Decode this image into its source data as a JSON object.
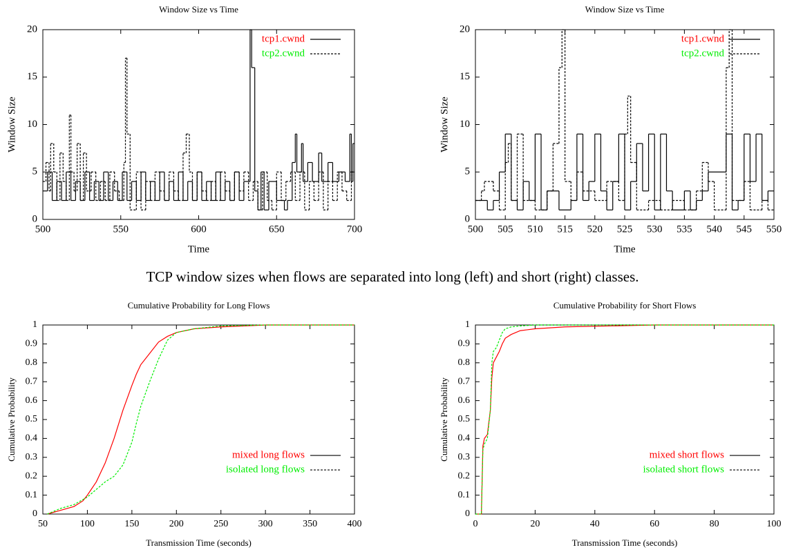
{
  "caption": "TCP window sizes when flows are separated into long (left) and short (right) classes.",
  "chart_data": [
    {
      "type": "line",
      "step": true,
      "title": "Window Size vs Time",
      "xlabel": "Time",
      "ylabel": "Window Size",
      "xlim": [
        500,
        700
      ],
      "xticks": [
        500,
        550,
        600,
        650,
        700
      ],
      "ylim": [
        0,
        20
      ],
      "yticks": [
        0,
        5,
        10,
        15,
        20
      ],
      "legend": "top-right",
      "series": [
        {
          "name": "tcp1.cwnd",
          "color": "#ff0000",
          "dashed": false,
          "x": [
            500,
            503,
            506,
            509,
            512,
            515,
            518,
            521,
            524,
            527,
            530,
            533,
            536,
            539,
            542,
            545,
            548,
            551,
            554,
            557,
            560,
            563,
            566,
            569,
            572,
            575,
            578,
            581,
            584,
            587,
            590,
            593,
            596,
            599,
            602,
            605,
            608,
            611,
            614,
            617,
            620,
            623,
            626,
            629,
            633,
            634,
            636,
            638,
            640,
            642,
            645,
            650,
            655,
            657,
            660,
            662,
            663,
            666,
            667,
            670,
            673,
            677,
            679,
            683,
            686,
            690,
            694,
            697,
            698,
            699,
            700
          ],
          "values": [
            3,
            5,
            2,
            4,
            2,
            5,
            2,
            4,
            2,
            5,
            2,
            4,
            2,
            5,
            2,
            4,
            2,
            5,
            2,
            4,
            2,
            5,
            2,
            4,
            2,
            5,
            2,
            4,
            2,
            5,
            2,
            4,
            2,
            5,
            2,
            4,
            2,
            5,
            2,
            4,
            2,
            5,
            2,
            4,
            20,
            16,
            3,
            1,
            5,
            1,
            4,
            2,
            1,
            2,
            6,
            9,
            5,
            8,
            4,
            6,
            4,
            7,
            4,
            6,
            4,
            5,
            4,
            9,
            4,
            8,
            8
          ]
        },
        {
          "name": "tcp2.cwnd",
          "color": "#00ee00",
          "dashed": true,
          "x": [
            500,
            502,
            504,
            505,
            507,
            509,
            511,
            513,
            515,
            517,
            518,
            520,
            522,
            524,
            526,
            528,
            531,
            534,
            537,
            540,
            543,
            546,
            549,
            552,
            553,
            554,
            556,
            560,
            563,
            566,
            569,
            572,
            575,
            578,
            581,
            584,
            587,
            590,
            592,
            594,
            596,
            599,
            602,
            605,
            608,
            611,
            614,
            617,
            620,
            623,
            626,
            629,
            632,
            635,
            638,
            641,
            644,
            647,
            650,
            653,
            656,
            659,
            662,
            665,
            668,
            671,
            674,
            677,
            680,
            683,
            686,
            689,
            692,
            695,
            698,
            700
          ],
          "values": [
            4,
            6,
            3,
            8,
            5,
            2,
            7,
            4,
            2,
            11,
            5,
            3,
            8,
            2,
            7,
            3,
            5,
            2,
            4,
            2,
            5,
            3,
            2,
            6,
            17,
            9,
            1,
            5,
            1,
            4,
            2,
            5,
            3,
            2,
            5,
            3,
            2,
            7,
            9,
            5,
            2,
            5,
            3,
            2,
            4,
            2,
            5,
            3,
            2,
            5,
            3,
            5,
            2,
            4,
            1,
            5,
            2,
            1,
            5,
            2,
            4,
            5,
            2,
            5,
            1,
            4,
            2,
            5,
            1,
            4,
            2,
            5,
            3,
            2,
            5,
            5
          ]
        }
      ]
    },
    {
      "type": "line",
      "step": true,
      "title": "Window Size vs Time",
      "xlabel": "Time",
      "ylabel": "Window Size",
      "xlim": [
        500,
        550
      ],
      "xticks": [
        500,
        505,
        510,
        515,
        520,
        525,
        530,
        535,
        540,
        545,
        550
      ],
      "ylim": [
        0,
        20
      ],
      "yticks": [
        0,
        5,
        10,
        15,
        20
      ],
      "legend": "top-right",
      "series": [
        {
          "name": "tcp1.cwnd",
          "color": "#ff0000",
          "dashed": false,
          "x": [
            500,
            502,
            503,
            504,
            505,
            506,
            507,
            508,
            509,
            510,
            511,
            512,
            514,
            516,
            517,
            518,
            519,
            520,
            521,
            522,
            523,
            524,
            525,
            526,
            527,
            528,
            529,
            530,
            531,
            532,
            533,
            535,
            536,
            537,
            538,
            539,
            542,
            543,
            544,
            545,
            546,
            547,
            548,
            549,
            550
          ],
          "values": [
            2,
            1,
            2,
            5,
            9,
            2,
            1,
            4,
            2,
            9,
            1,
            3,
            1,
            2,
            9,
            2,
            4,
            9,
            3,
            1,
            4,
            9,
            1,
            4,
            8,
            3,
            9,
            1,
            9,
            3,
            1,
            3,
            1,
            2,
            3,
            5,
            9,
            1,
            2,
            9,
            4,
            9,
            2,
            3,
            3
          ]
        },
        {
          "name": "tcp2.cwnd",
          "color": "#00ee00",
          "dashed": true,
          "x": [
            500,
            501,
            501.5,
            503,
            504,
            505,
            505.5,
            506,
            507,
            508,
            510,
            512,
            513,
            514,
            514.5,
            515,
            516,
            517,
            518,
            520,
            522,
            524,
            525,
            525.5,
            526,
            527,
            529,
            531,
            533,
            535,
            537,
            538,
            539,
            540,
            542,
            542.5,
            543,
            545,
            546,
            548,
            549,
            550
          ],
          "values": [
            2,
            3,
            4,
            3,
            1,
            6,
            8,
            2,
            9,
            2,
            1,
            3,
            8,
            16,
            20,
            4,
            2,
            5,
            3,
            2,
            4,
            2,
            9,
            13,
            6,
            1,
            2,
            1,
            2,
            1,
            3,
            6,
            4,
            1,
            16,
            20,
            2,
            4,
            1,
            2,
            1,
            1
          ]
        }
      ]
    },
    {
      "type": "line",
      "title": "Cumulative Probability for Long Flows",
      "xlabel": "Transmission Time (seconds)",
      "ylabel": "Cumulative Probability",
      "xlim": [
        50,
        400
      ],
      "xticks": [
        50,
        100,
        150,
        200,
        250,
        300,
        350,
        400
      ],
      "ylim": [
        0,
        1
      ],
      "yticks": [
        0,
        0.1,
        0.2,
        0.3,
        0.4,
        0.5,
        0.6,
        0.7,
        0.8,
        0.9,
        1
      ],
      "legend": "right",
      "series": [
        {
          "name": "mixed long flows",
          "color": "#ff0000",
          "dashed": false,
          "x": [
            55,
            70,
            85,
            95,
            100,
            110,
            120,
            130,
            140,
            150,
            155,
            160,
            170,
            180,
            190,
            200,
            220,
            250,
            300,
            400
          ],
          "values": [
            0,
            0.02,
            0.04,
            0.07,
            0.1,
            0.17,
            0.27,
            0.4,
            0.55,
            0.68,
            0.74,
            0.79,
            0.85,
            0.91,
            0.94,
            0.96,
            0.98,
            0.99,
            1,
            1
          ]
        },
        {
          "name": "isolated long flows",
          "color": "#00ee00",
          "dashed": true,
          "x": [
            55,
            70,
            85,
            100,
            110,
            120,
            130,
            140,
            150,
            155,
            160,
            170,
            180,
            190,
            200,
            220,
            250,
            300,
            400
          ],
          "values": [
            0,
            0.03,
            0.05,
            0.09,
            0.13,
            0.17,
            0.2,
            0.26,
            0.38,
            0.48,
            0.57,
            0.7,
            0.82,
            0.92,
            0.96,
            0.98,
            0.995,
            1,
            1
          ]
        }
      ]
    },
    {
      "type": "line",
      "title": "Cumulative Probability for Short Flows",
      "xlabel": "Transmission Time (seconds)",
      "ylabel": "Cumulative Probability",
      "xlim": [
        0,
        100
      ],
      "xticks": [
        0,
        20,
        40,
        60,
        80,
        100
      ],
      "ylim": [
        0,
        1
      ],
      "yticks": [
        0,
        0.1,
        0.2,
        0.3,
        0.4,
        0.5,
        0.6,
        0.7,
        0.8,
        0.9,
        1
      ],
      "legend": "right",
      "series": [
        {
          "name": "mixed short flows",
          "color": "#ff0000",
          "dashed": false,
          "x": [
            0,
            2,
            2.5,
            3,
            4,
            5,
            5.5,
            6,
            7,
            8,
            9,
            10,
            12,
            15,
            20,
            30,
            60,
            100
          ],
          "values": [
            0,
            0,
            0.36,
            0.4,
            0.42,
            0.55,
            0.72,
            0.8,
            0.83,
            0.86,
            0.9,
            0.93,
            0.95,
            0.97,
            0.98,
            0.99,
            1,
            1
          ]
        },
        {
          "name": "isolated short flows",
          "color": "#00ee00",
          "dashed": true,
          "x": [
            0,
            2,
            2.5,
            3,
            4,
            5,
            5.5,
            6,
            7,
            8,
            9,
            10,
            12,
            15,
            20,
            100
          ],
          "values": [
            0,
            0,
            0.34,
            0.37,
            0.4,
            0.55,
            0.8,
            0.86,
            0.88,
            0.92,
            0.96,
            0.98,
            0.99,
            0.995,
            1,
            1
          ]
        }
      ]
    }
  ]
}
